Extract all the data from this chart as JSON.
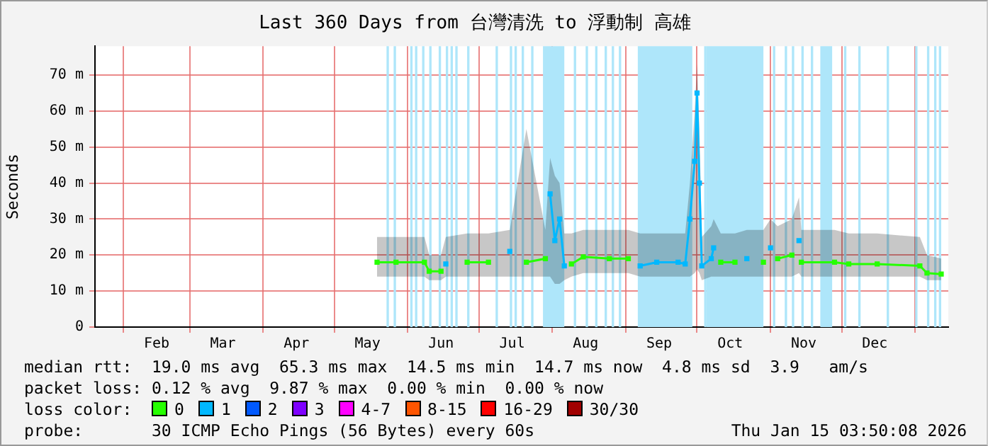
{
  "chart_data": {
    "type": "line",
    "title": "Last 360 Days from 台灣清洗 to 浮動制 高雄",
    "ylabel": "Seconds",
    "legend_title": "loss color:",
    "legend": "bottom",
    "grid": true,
    "marker": "square",
    "line_style": "solid",
    "xlim": [
      "2025-01-20",
      "2026-01-15"
    ],
    "xticks": [
      {
        "value": "2025-02-01",
        "label": null
      },
      {
        "value": "2025-02-15",
        "label": "Feb"
      },
      {
        "value": "2025-03-01",
        "label": null
      },
      {
        "value": "2025-03-15",
        "label": "Mar"
      },
      {
        "value": "2025-04-01",
        "label": null
      },
      {
        "value": "2025-04-15",
        "label": "Apr"
      },
      {
        "value": "2025-05-01",
        "label": null
      },
      {
        "value": "2025-05-15",
        "label": "May"
      },
      {
        "value": "2025-06-01",
        "label": null
      },
      {
        "value": "2025-06-15",
        "label": "Jun"
      },
      {
        "value": "2025-07-01",
        "label": null
      },
      {
        "value": "2025-07-15",
        "label": "Jul"
      },
      {
        "value": "2025-08-01",
        "label": null
      },
      {
        "value": "2025-08-15",
        "label": "Aug"
      },
      {
        "value": "2025-09-01",
        "label": null
      },
      {
        "value": "2025-09-15",
        "label": "Sep"
      },
      {
        "value": "2025-10-01",
        "label": null
      },
      {
        "value": "2025-10-15",
        "label": "Oct"
      },
      {
        "value": "2025-11-01",
        "label": null
      },
      {
        "value": "2025-11-15",
        "label": "Nov"
      },
      {
        "value": "2025-12-01",
        "label": null
      },
      {
        "value": "2025-12-15",
        "label": "Dec"
      },
      {
        "value": "2026-01-01",
        "label": null
      }
    ],
    "ylim": [
      0,
      78
    ],
    "yticks": [
      {
        "value": 0,
        "label": "0"
      },
      {
        "value": 10,
        "label": "10 m"
      },
      {
        "value": 20,
        "label": "20 m"
      },
      {
        "value": 30,
        "label": "30 m"
      },
      {
        "value": 40,
        "label": "40 m"
      },
      {
        "value": 50,
        "label": "50 m"
      },
      {
        "value": 60,
        "label": "60 m"
      },
      {
        "value": 70,
        "label": "70 m"
      }
    ],
    "x": [
      "2025-05-19",
      "2025-05-27",
      "2025-06-08",
      "2025-06-10",
      "2025-06-15",
      "2025-06-17",
      "2025-06-26",
      "2025-07-05",
      "2025-07-14",
      "2025-07-21",
      "2025-07-29",
      "2025-07-31",
      "2025-08-02",
      "2025-08-04",
      "2025-08-06",
      "2025-08-09",
      "2025-08-14",
      "2025-08-25",
      "2025-09-02",
      "2025-09-07",
      "2025-09-14",
      "2025-09-23",
      "2025-09-26",
      "2025-09-28",
      "2025-09-30",
      "2025-10-01",
      "2025-10-02",
      "2025-10-03",
      "2025-10-07",
      "2025-10-08",
      "2025-10-11",
      "2025-10-17",
      "2025-10-22",
      "2025-10-29",
      "2025-11-01",
      "2025-11-04",
      "2025-11-10",
      "2025-11-13",
      "2025-11-14",
      "2025-11-28",
      "2025-12-04",
      "2025-12-16",
      "2026-01-03",
      "2026-01-06",
      "2026-01-12"
    ],
    "series": [
      {
        "name": "0",
        "color": "#26ff00",
        "values": [
          18,
          18,
          18,
          15.5,
          15.5,
          null,
          18,
          18,
          null,
          18,
          19,
          null,
          null,
          null,
          null,
          17.5,
          19.5,
          19,
          19,
          null,
          null,
          null,
          null,
          null,
          null,
          null,
          null,
          null,
          null,
          null,
          18,
          18,
          null,
          18,
          null,
          19,
          20,
          null,
          18,
          18,
          17.5,
          17.5,
          17,
          15,
          14.7
        ],
        "lower": [
          14,
          14,
          14,
          13,
          13,
          14,
          14,
          14,
          14,
          14,
          14,
          14,
          12,
          12,
          13,
          14,
          15,
          15,
          15,
          14,
          14,
          14,
          14,
          14,
          15,
          16,
          15,
          13,
          14,
          14,
          14,
          14,
          14,
          14,
          14,
          14,
          14,
          15,
          14,
          14,
          14,
          14,
          14,
          13,
          13
        ],
        "upper": [
          25,
          25,
          25,
          20,
          20,
          25,
          26,
          26,
          27,
          55,
          27,
          47,
          42,
          40,
          26,
          26,
          27,
          27,
          27,
          26,
          26,
          26,
          26,
          40,
          60,
          73,
          55,
          25,
          28,
          30,
          26,
          26,
          27,
          27,
          30,
          28,
          30,
          36,
          27,
          27,
          26,
          26,
          25,
          20,
          19
        ]
      },
      {
        "name": "1",
        "color": "#00b8ff",
        "values": [
          null,
          null,
          null,
          null,
          null,
          17.5,
          null,
          null,
          21,
          null,
          null,
          37,
          24,
          30,
          17,
          null,
          null,
          null,
          null,
          17,
          18,
          18,
          17.5,
          30,
          46,
          65,
          40,
          17,
          19,
          22,
          null,
          null,
          19,
          null,
          22,
          null,
          null,
          24,
          null,
          null,
          null,
          null,
          null,
          null,
          null
        ]
      },
      {
        "name": "2",
        "color": "#0059ff",
        "values": [
          null,
          null,
          null,
          null,
          null,
          null,
          null,
          null,
          null,
          null,
          null,
          null,
          null,
          null,
          null,
          null,
          null,
          null,
          null,
          null,
          null,
          null,
          null,
          null,
          null,
          null,
          null,
          null,
          null,
          null,
          null,
          null,
          null,
          null,
          null,
          null,
          null,
          null,
          null,
          null,
          null,
          null,
          null,
          null,
          null
        ]
      },
      {
        "name": "3",
        "color": "#7e00ff",
        "values": [
          null,
          null,
          null,
          null,
          null,
          null,
          null,
          null,
          null,
          null,
          null,
          null,
          null,
          null,
          null,
          null,
          null,
          null,
          null,
          null,
          null,
          null,
          null,
          null,
          null,
          null,
          null,
          null,
          null,
          null,
          null,
          null,
          null,
          null,
          null,
          null,
          null,
          null,
          null,
          null,
          null,
          null,
          null,
          null,
          null
        ]
      },
      {
        "name": "4-7",
        "color": "#ff00ff",
        "values": [
          null,
          null,
          null,
          null,
          null,
          null,
          null,
          null,
          null,
          null,
          null,
          null,
          null,
          null,
          null,
          null,
          null,
          null,
          null,
          null,
          null,
          null,
          null,
          null,
          null,
          null,
          null,
          null,
          null,
          null,
          null,
          null,
          null,
          null,
          null,
          null,
          null,
          null,
          null,
          null,
          null,
          null,
          null,
          null,
          null
        ]
      },
      {
        "name": "8-15",
        "color": "#ff5500",
        "values": [
          null,
          null,
          null,
          null,
          null,
          null,
          null,
          null,
          null,
          null,
          null,
          null,
          null,
          null,
          null,
          null,
          null,
          null,
          null,
          null,
          null,
          null,
          null,
          null,
          null,
          null,
          null,
          null,
          null,
          null,
          null,
          null,
          null,
          null,
          null,
          null,
          null,
          null,
          null,
          null,
          null,
          null,
          null,
          null,
          null
        ]
      },
      {
        "name": "16-29",
        "color": "#ff0000",
        "values": [
          null,
          null,
          null,
          null,
          null,
          null,
          null,
          null,
          null,
          null,
          null,
          null,
          null,
          null,
          null,
          null,
          null,
          null,
          null,
          null,
          null,
          null,
          null,
          null,
          null,
          null,
          null,
          null,
          null,
          null,
          null,
          null,
          null,
          null,
          null,
          null,
          null,
          null,
          null,
          null,
          null,
          null,
          null,
          null,
          null
        ]
      },
      {
        "name": "30/30",
        "color": "#a10000",
        "values": [
          null,
          null,
          null,
          null,
          null,
          null,
          null,
          null,
          null,
          null,
          null,
          null,
          null,
          null,
          null,
          null,
          null,
          null,
          null,
          null,
          null,
          null,
          null,
          null,
          null,
          null,
          null,
          null,
          null,
          null,
          null,
          null,
          null,
          null,
          null,
          null,
          null,
          null,
          null,
          null,
          null,
          null,
          null,
          null,
          null
        ]
      }
    ],
    "bands": [
      {
        "axis": "x",
        "from": "2025-05-23",
        "to": "2025-05-24",
        "color": "#aee6fa"
      },
      {
        "axis": "x",
        "from": "2025-05-26",
        "to": "2025-05-27",
        "color": "#aee6fa"
      },
      {
        "axis": "x",
        "from": "2025-06-02",
        "to": "2025-06-03",
        "color": "#aee6fa"
      },
      {
        "axis": "x",
        "from": "2025-06-04",
        "to": "2025-06-05",
        "color": "#aee6fa"
      },
      {
        "axis": "x",
        "from": "2025-06-07",
        "to": "2025-06-08",
        "color": "#aee6fa"
      },
      {
        "axis": "x",
        "from": "2025-06-10",
        "to": "2025-06-11",
        "color": "#aee6fa"
      },
      {
        "axis": "x",
        "from": "2025-06-14",
        "to": "2025-06-15",
        "color": "#aee6fa"
      },
      {
        "axis": "x",
        "from": "2025-06-17",
        "to": "2025-06-18",
        "color": "#aee6fa"
      },
      {
        "axis": "x",
        "from": "2025-06-19",
        "to": "2025-06-20",
        "color": "#aee6fa"
      },
      {
        "axis": "x",
        "from": "2025-06-21",
        "to": "2025-06-22",
        "color": "#aee6fa"
      },
      {
        "axis": "x",
        "from": "2025-06-26",
        "to": "2025-06-27",
        "color": "#aee6fa"
      },
      {
        "axis": "x",
        "from": "2025-07-08",
        "to": "2025-07-09",
        "color": "#aee6fa"
      },
      {
        "axis": "x",
        "from": "2025-07-14",
        "to": "2025-07-15",
        "color": "#aee6fa"
      },
      {
        "axis": "x",
        "from": "2025-07-16",
        "to": "2025-07-17",
        "color": "#aee6fa"
      },
      {
        "axis": "x",
        "from": "2025-07-19",
        "to": "2025-07-20",
        "color": "#aee6fa"
      },
      {
        "axis": "x",
        "from": "2025-07-23",
        "to": "2025-07-24",
        "color": "#aee6fa"
      },
      {
        "axis": "x",
        "from": "2025-07-28",
        "to": "2025-08-06",
        "color": "#aee6fa"
      },
      {
        "axis": "x",
        "from": "2025-08-10",
        "to": "2025-08-11",
        "color": "#aee6fa"
      },
      {
        "axis": "x",
        "from": "2025-08-15",
        "to": "2025-08-16",
        "color": "#aee6fa"
      },
      {
        "axis": "x",
        "from": "2025-08-19",
        "to": "2025-08-20",
        "color": "#aee6fa"
      },
      {
        "axis": "x",
        "from": "2025-08-23",
        "to": "2025-08-24",
        "color": "#aee6fa"
      },
      {
        "axis": "x",
        "from": "2025-08-26",
        "to": "2025-08-27",
        "color": "#aee6fa"
      },
      {
        "axis": "x",
        "from": "2025-08-29",
        "to": "2025-08-30",
        "color": "#aee6fa"
      },
      {
        "axis": "x",
        "from": "2025-09-06",
        "to": "2025-09-29",
        "color": "#aee6fa"
      },
      {
        "axis": "x",
        "from": "2025-10-04",
        "to": "2025-10-05",
        "color": "#aee6fa"
      },
      {
        "axis": "x",
        "from": "2025-10-05",
        "to": "2025-10-29",
        "color": "#aee6fa"
      },
      {
        "axis": "x",
        "from": "2025-11-02",
        "to": "2025-11-03",
        "color": "#aee6fa"
      },
      {
        "axis": "x",
        "from": "2025-11-07",
        "to": "2025-11-08",
        "color": "#aee6fa"
      },
      {
        "axis": "x",
        "from": "2025-11-10",
        "to": "2025-11-11",
        "color": "#aee6fa"
      },
      {
        "axis": "x",
        "from": "2025-11-14",
        "to": "2025-11-15",
        "color": "#aee6fa"
      },
      {
        "axis": "x",
        "from": "2025-11-18",
        "to": "2025-11-19",
        "color": "#aee6fa"
      },
      {
        "axis": "x",
        "from": "2025-11-22",
        "to": "2025-11-27",
        "color": "#aee6fa"
      },
      {
        "axis": "x",
        "from": "2025-12-02",
        "to": "2025-12-03",
        "color": "#aee6fa"
      },
      {
        "axis": "x",
        "from": "2025-12-08",
        "to": "2025-12-09",
        "color": "#aee6fa"
      },
      {
        "axis": "x",
        "from": "2025-12-20",
        "to": "2025-12-21",
        "color": "#aee6fa"
      },
      {
        "axis": "x",
        "from": "2026-01-01",
        "to": "2026-01-02",
        "color": "#aee6fa"
      },
      {
        "axis": "x",
        "from": "2026-01-06",
        "to": "2026-01-07",
        "color": "#aee6fa"
      },
      {
        "axis": "x",
        "from": "2026-01-09",
        "to": "2026-01-10",
        "color": "#aee6fa"
      },
      {
        "axis": "x",
        "from": "2026-01-11",
        "to": "2026-01-12",
        "color": "#aee6fa"
      }
    ],
    "annotations": [
      "median rtt:  19.0 ms avg  65.3 ms max  14.5 ms min  14.7 ms now  4.8 ms sd  3.9   am/s",
      "packet loss: 0.12 % avg  9.87 % max  0.00 % min  0.00 % now",
      "probe:       30 ICMP Echo Pings (56 Bytes) every 60s",
      "Thu Jan 15 03:50:08 2026"
    ]
  }
}
